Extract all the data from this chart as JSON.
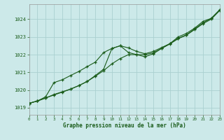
{
  "background_color": "#cce9e9",
  "grid_color": "#aad0d0",
  "line_color": "#1a5c1a",
  "xlim": [
    0,
    23
  ],
  "ylim": [
    1018.6,
    1024.85
  ],
  "yticks": [
    1019,
    1020,
    1021,
    1022,
    1023,
    1024
  ],
  "xticks": [
    0,
    1,
    2,
    3,
    4,
    5,
    6,
    7,
    8,
    9,
    10,
    11,
    12,
    13,
    14,
    15,
    16,
    17,
    18,
    19,
    20,
    21,
    22,
    23
  ],
  "xlabel": "Graphe pression niveau de la mer (hPa)",
  "s1y": [
    1019.25,
    1019.38,
    1019.55,
    1019.75,
    1019.9,
    1020.05,
    1020.25,
    1020.48,
    1020.82,
    1021.18,
    1022.35,
    1022.5,
    1022.38,
    1022.18,
    1022.05,
    1022.18,
    1022.4,
    1022.62,
    1023.0,
    1023.2,
    1023.5,
    1023.88,
    1024.05,
    1024.52
  ],
  "s2y": [
    1019.25,
    1019.38,
    1019.62,
    1020.42,
    1020.58,
    1020.82,
    1021.05,
    1021.32,
    1021.58,
    1022.12,
    1022.35,
    1022.5,
    1022.12,
    1022.0,
    1021.88,
    1022.05,
    1022.35,
    1022.62,
    1022.92,
    1023.12,
    1023.45,
    1023.8,
    1024.05,
    1024.52
  ],
  "s3y": [
    1019.25,
    1019.38,
    1019.55,
    1019.72,
    1019.88,
    1020.05,
    1020.25,
    1020.48,
    1020.78,
    1021.1,
    1021.48,
    1021.78,
    1022.0,
    1022.0,
    1022.0,
    1022.1,
    1022.35,
    1022.6,
    1022.9,
    1023.1,
    1023.42,
    1023.75,
    1024.0,
    1024.48
  ]
}
